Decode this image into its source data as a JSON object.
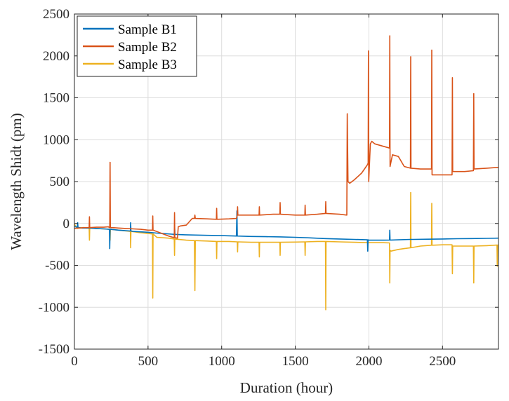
{
  "chart_data": {
    "type": "line",
    "title": "",
    "xlabel": "Duration (hour)",
    "ylabel": "Wavelength Shidt (pm)",
    "xlim": [
      0,
      2880
    ],
    "ylim": [
      -1500,
      2500
    ],
    "xticks": [
      0,
      500,
      1000,
      1500,
      2000,
      2500
    ],
    "yticks": [
      -1500,
      -1000,
      -500,
      0,
      500,
      1000,
      1500,
      2000,
      2500
    ],
    "grid": true,
    "legend_position": "top-left",
    "series": [
      {
        "name": "Sample B1",
        "color": "#0072BD",
        "x": [
          0,
          10,
          20,
          22,
          25,
          30,
          50,
          100,
          150,
          200,
          238,
          240,
          242,
          245,
          300,
          380,
          382,
          384,
          400,
          450,
          500,
          560,
          600,
          660,
          680,
          681,
          683,
          700,
          750,
          800,
          900,
          1000,
          1100,
          1104,
          1106,
          1108,
          1200,
          1300,
          1400,
          1500,
          1600,
          1700,
          1800,
          1900,
          1990,
          1992,
          1994,
          2000,
          2100,
          2140,
          2142,
          2144,
          2150,
          2200,
          2280,
          2300,
          2400,
          2500,
          2600,
          2700,
          2800,
          2880
        ],
        "y": [
          -40,
          -40,
          -50,
          10,
          -50,
          -50,
          -55,
          -55,
          -60,
          -65,
          -70,
          -300,
          -70,
          -70,
          -80,
          -90,
          10,
          -90,
          -95,
          -100,
          -105,
          -115,
          -120,
          -128,
          -130,
          -60,
          -130,
          -132,
          -135,
          -138,
          -142,
          -145,
          -150,
          150,
          -150,
          -150,
          -155,
          -158,
          -160,
          -165,
          -172,
          -180,
          -185,
          -190,
          -195,
          -330,
          -195,
          -200,
          -200,
          -198,
          -80,
          -198,
          -198,
          -195,
          -190,
          -190,
          -188,
          -185,
          -182,
          -180,
          -178,
          -175
        ]
      },
      {
        "name": "Sample B2",
        "color": "#D95319",
        "x": [
          0,
          20,
          40,
          60,
          80,
          100,
          102,
          104,
          150,
          200,
          230,
          240,
          242,
          244,
          260,
          300,
          350,
          400,
          450,
          500,
          530,
          532,
          534,
          580,
          640,
          678,
          680,
          682,
          700,
          705,
          720,
          760,
          800,
          815,
          818,
          821,
          900,
          964,
          966,
          968,
          1050,
          1100,
          1106,
          1108,
          1110,
          1200,
          1254,
          1256,
          1258,
          1350,
          1395,
          1397,
          1399,
          1500,
          1565,
          1567,
          1569,
          1650,
          1705,
          1707,
          1709,
          1800,
          1850,
          1853,
          1858,
          1870,
          1900,
          1950,
          1990,
          1995,
          1997,
          1999,
          2010,
          2020,
          2040,
          2100,
          2140,
          2142,
          2144,
          2160,
          2200,
          2240,
          2282,
          2284,
          2286,
          2350,
          2425,
          2427,
          2429,
          2500,
          2565,
          2567,
          2569,
          2650,
          2710,
          2712,
          2714,
          2800,
          2880
        ],
        "y": [
          -60,
          -55,
          -55,
          -50,
          -50,
          -50,
          80,
          -50,
          -45,
          -45,
          -40,
          -50,
          730,
          -50,
          -50,
          -55,
          -60,
          -65,
          -70,
          -80,
          -80,
          90,
          -80,
          -110,
          -150,
          -170,
          130,
          -170,
          -175,
          -40,
          -30,
          -20,
          60,
          60,
          100,
          60,
          55,
          50,
          180,
          50,
          55,
          60,
          100,
          200,
          100,
          100,
          100,
          200,
          100,
          110,
          110,
          250,
          110,
          100,
          100,
          220,
          100,
          110,
          120,
          260,
          120,
          110,
          100,
          1310,
          500,
          480,
          520,
          600,
          700,
          720,
          2060,
          500,
          950,
          980,
          950,
          920,
          900,
          2240,
          680,
          820,
          800,
          680,
          660,
          1990,
          660,
          650,
          650,
          2070,
          580,
          580,
          580,
          1740,
          620,
          620,
          630,
          1550,
          650,
          660,
          670
        ]
      },
      {
        "name": "Sample B3",
        "color": "#EDB120",
        "x": [
          0,
          20,
          40,
          60,
          80,
          100,
          102,
          104,
          150,
          200,
          240,
          242,
          244,
          300,
          380,
          382,
          384,
          450,
          500,
          530,
          532,
          534,
          560,
          640,
          678,
          680,
          682,
          760,
          815,
          818,
          821,
          900,
          964,
          966,
          968,
          1050,
          1106,
          1108,
          1110,
          1200,
          1254,
          1256,
          1258,
          1350,
          1395,
          1397,
          1399,
          1500,
          1565,
          1567,
          1569,
          1650,
          1705,
          1707,
          1709,
          1800,
          1900,
          2000,
          2100,
          2140,
          2142,
          2144,
          2150,
          2200,
          2240,
          2282,
          2284,
          2286,
          2350,
          2425,
          2427,
          2429,
          2500,
          2565,
          2567,
          2569,
          2650,
          2710,
          2712,
          2714,
          2800,
          2870,
          2872,
          2874,
          2880
        ],
        "y": [
          -10,
          -60,
          -50,
          -50,
          -55,
          -55,
          -200,
          -55,
          -60,
          -65,
          -70,
          -200,
          -70,
          -80,
          -95,
          -290,
          -95,
          -110,
          -120,
          -125,
          -890,
          -125,
          -165,
          -175,
          -185,
          -380,
          -185,
          -200,
          -205,
          -800,
          -205,
          -210,
          -215,
          -420,
          -215,
          -215,
          -220,
          -340,
          -220,
          -225,
          -225,
          -400,
          -225,
          -225,
          -225,
          -380,
          -225,
          -222,
          -220,
          -380,
          -220,
          -215,
          -215,
          -1030,
          -215,
          -220,
          -225,
          -230,
          -230,
          -232,
          -710,
          -320,
          -330,
          -310,
          -300,
          -290,
          370,
          -290,
          -270,
          -260,
          240,
          -260,
          -255,
          -255,
          -600,
          -270,
          -270,
          -270,
          -710,
          -270,
          -265,
          -258,
          -510,
          -258,
          -255
        ]
      }
    ]
  }
}
